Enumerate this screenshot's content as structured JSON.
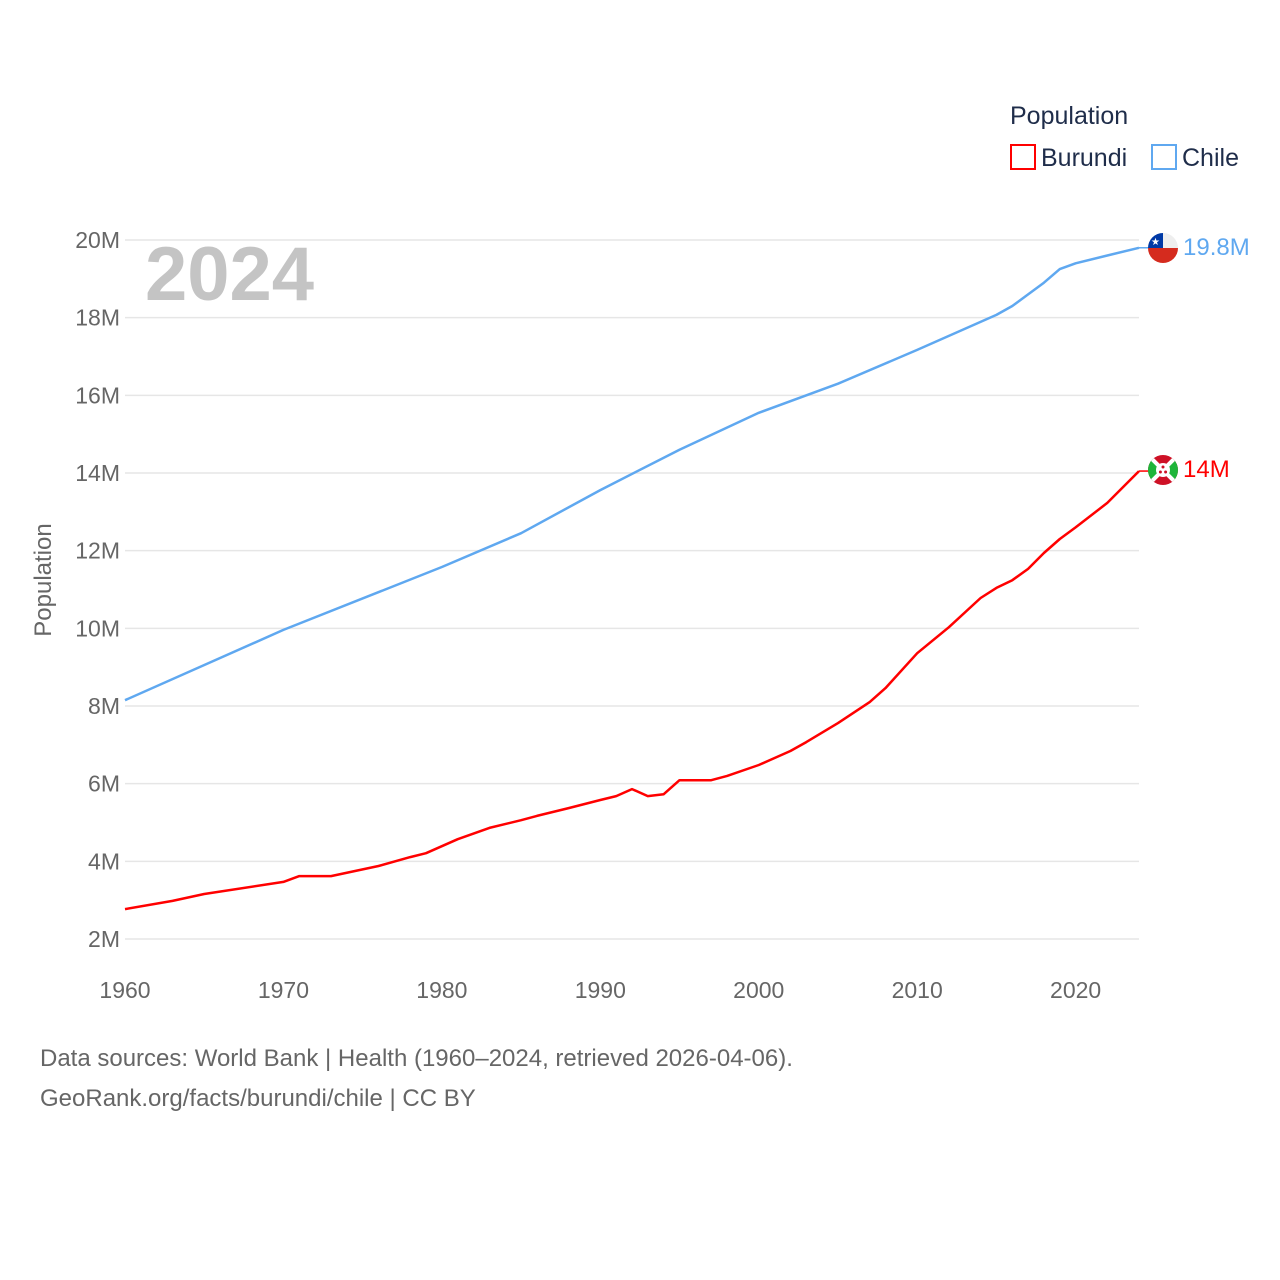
{
  "chart_data": {
    "type": "line",
    "title": "",
    "watermark_year": "2024",
    "xlabel": "",
    "ylabel": "Population",
    "xlim": [
      1960,
      2024
    ],
    "ylim": [
      2000000,
      20000000
    ],
    "x_ticks": [
      1960,
      1970,
      1980,
      1990,
      2000,
      2010,
      2020
    ],
    "x_tick_labels": [
      "1960",
      "1970",
      "1980",
      "1990",
      "2000",
      "2010",
      "2020"
    ],
    "y_ticks": [
      2000000,
      4000000,
      6000000,
      8000000,
      10000000,
      12000000,
      14000000,
      16000000,
      18000000,
      20000000
    ],
    "y_tick_labels": [
      "2M",
      "4M",
      "6M",
      "8M",
      "10M",
      "12M",
      "14M",
      "16M",
      "18M",
      "20M"
    ],
    "grid": true,
    "legend": {
      "title": "Population",
      "placement": "top-right"
    },
    "series": [
      {
        "name": "Burundi",
        "color": "#ff0000",
        "end_label": "14M",
        "x": [
          1960,
          1963,
          1965,
          1970,
          1971,
          1973,
          1976,
          1978,
          1979,
          1981,
          1983,
          1985,
          1986,
          1988,
          1990,
          1991,
          1992,
          1993,
          1994,
          1995,
          1997,
          1998,
          2000,
          2002,
          2003,
          2005,
          2007,
          2008,
          2010,
          2012,
          2014,
          2015,
          2016,
          2017,
          2018,
          2019,
          2020,
          2022,
          2024
        ],
        "values": [
          2.77,
          2.98,
          3.16,
          3.47,
          3.62,
          3.62,
          3.88,
          4.11,
          4.21,
          4.57,
          4.86,
          5.06,
          5.17,
          5.37,
          5.58,
          5.68,
          5.86,
          5.68,
          5.73,
          6.09,
          6.09,
          6.2,
          6.48,
          6.84,
          7.07,
          7.56,
          8.1,
          8.46,
          9.36,
          10.03,
          10.78,
          11.04,
          11.24,
          11.53,
          11.94,
          12.3,
          12.6,
          13.23,
          14.05
        ]
      },
      {
        "name": "Chile",
        "color": "#5fa8f0",
        "end_label": "19.8M",
        "x": [
          1960,
          1970,
          1980,
          1985,
          1990,
          1995,
          2000,
          2005,
          2010,
          2015,
          2016,
          2017,
          2018,
          2019,
          2020,
          2022,
          2024
        ],
        "values": [
          8.15,
          9.96,
          11.58,
          12.45,
          13.56,
          14.6,
          15.55,
          16.3,
          17.17,
          18.07,
          18.3,
          18.6,
          18.9,
          19.25,
          19.4,
          19.6,
          19.8
        ]
      }
    ]
  },
  "footer": {
    "line1": "Data sources: World Bank | Health (1960–2024, retrieved 2026-04-06).",
    "line2": "GeoRank.org/facts/burundi/chile | CC BY"
  }
}
